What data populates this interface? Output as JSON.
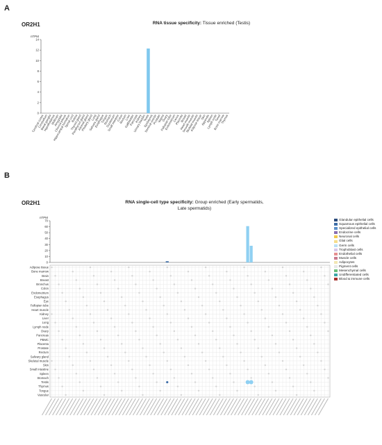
{
  "panelA": {
    "letter": "A",
    "gene": "OR2H1",
    "title_bold": "RNA tissue specificity:",
    "title_rest": "Tissue enriched (Testis)"
  },
  "panelB": {
    "letter": "B",
    "gene": "OR2H1",
    "title_bold": "RNA single-cell type specificity:",
    "title_rest": "Group enriched (Early spermatids, Late spermatids)"
  },
  "chart_data": [
    {
      "type": "bar",
      "title": "RNA tissue specificity: Tissue enriched (Testis)",
      "ylabel": "nTPM",
      "ylim": [
        0,
        14
      ],
      "yticks": [
        0,
        2,
        4,
        6,
        8,
        10,
        12,
        14
      ],
      "color": "#7fc8ee",
      "categories": [
        "Cerebral cortex",
        "Cerebellum",
        "Basal ganglia",
        "Hypothalamus",
        "Midbrain",
        "Amygdala",
        "Choroid plexus",
        "Hippocampal formation",
        "Spinal cord",
        "Retina",
        "Thyroid gland",
        "Parathyroid gland",
        "Adrenal gland",
        "Pituitary gland",
        "Lung",
        "Salivary gland",
        "Esophagus",
        "Tongue",
        "Stomach",
        "Duodenum",
        "Small intestine",
        "Colon",
        "Rectum",
        "Liver",
        "Gallbladder",
        "Pancreas",
        "Kidney",
        "Urinary bladder",
        "Testis",
        "Epididymis",
        "Seminal vesicle",
        "Prostate",
        "Vagina",
        "Ovary",
        "Fallopian tube",
        "Endometrium",
        "Cervix",
        "Placenta",
        "Breast",
        "Heart muscle",
        "Smooth muscle",
        "Skeletal muscle",
        "Adipose tissue",
        "Skin",
        "Appendix",
        "Spleen",
        "Lymph node",
        "Tonsil",
        "Bone marrow",
        "Thymus"
      ],
      "values": [
        0,
        0,
        0,
        0,
        0,
        0,
        0,
        0,
        0,
        0,
        0,
        0,
        0,
        0,
        0,
        0,
        0,
        0,
        0,
        0,
        0,
        0,
        0,
        0,
        0,
        0,
        0,
        0,
        12.3,
        0,
        0,
        0,
        0,
        0,
        0,
        0,
        0,
        0,
        0,
        0,
        0,
        0,
        0,
        0,
        0,
        0,
        0,
        0,
        0,
        0
      ]
    },
    {
      "type": "bar",
      "title": "RNA single-cell type specificity: Group enriched (Early spermatids, Late spermatids)",
      "ylabel": "nTPM",
      "ylim": [
        0,
        70
      ],
      "yticks": [
        0,
        10,
        20,
        30,
        40,
        50,
        60,
        70
      ],
      "categories_count": 80,
      "bars": [
        {
          "index": 33,
          "value": 2,
          "color": "#3e6ea8"
        },
        {
          "index": 56,
          "value": 61,
          "color": "#8fd0f2"
        },
        {
          "index": 57,
          "value": 28,
          "color": "#8fd0f2"
        }
      ],
      "legend": [
        {
          "label": "Glandular epithelial cells",
          "color": "#2a4b7c"
        },
        {
          "label": "Squamous epithelial cells",
          "color": "#3d6da6"
        },
        {
          "label": "Specialized epithelial cells",
          "color": "#5b8fc9"
        },
        {
          "label": "Endocrine cells",
          "color": "#8a6fb3"
        },
        {
          "label": "Neuronal cells",
          "color": "#f2c94c"
        },
        {
          "label": "Glial cells",
          "color": "#f5dd8c"
        },
        {
          "label": "Germ cells",
          "color": "#b9dff5"
        },
        {
          "label": "Trophoblast cells",
          "color": "#d9c6e8"
        },
        {
          "label": "Endothelial cells",
          "color": "#e58f8f"
        },
        {
          "label": "Muscle cells",
          "color": "#c97a8f"
        },
        {
          "label": "Adipocytes",
          "color": "#f2e6b3"
        },
        {
          "label": "Pigment cells",
          "color": "#e8e8e8"
        },
        {
          "label": "Mesenchymal cells",
          "color": "#6cbf7a"
        },
        {
          "label": "Undifferentiated cells",
          "color": "#3aa6a6"
        },
        {
          "label": "Blood & immune cells",
          "color": "#a8322d"
        }
      ],
      "heatmap_rows": [
        "Adipose tissue",
        "Bone marrow",
        "Brain",
        "Breast",
        "Bronchus",
        "Colon",
        "Endometrium",
        "Esophagus",
        "Eye",
        "Fallopian tube",
        "Heart muscle",
        "Kidney",
        "Liver",
        "Lung",
        "Lymph node",
        "Ovary",
        "Pancreas",
        "PBMC",
        "Placenta",
        "Prostate",
        "Rectum",
        "Salivary gland",
        "Skeletal muscle",
        "Skin",
        "Small intestine",
        "Spleen",
        "Stomach",
        "Testis",
        "Thymus",
        "Tongue",
        "Vascular"
      ],
      "heatmap_highlights": [
        {
          "row": "Testis",
          "column_index": 33,
          "color": "#3e6ea8"
        },
        {
          "row": "Testis",
          "column_index": 56,
          "color": "#8fd0f2"
        },
        {
          "row": "Testis",
          "column_index": 57,
          "color": "#8fd0f2"
        }
      ]
    }
  ]
}
